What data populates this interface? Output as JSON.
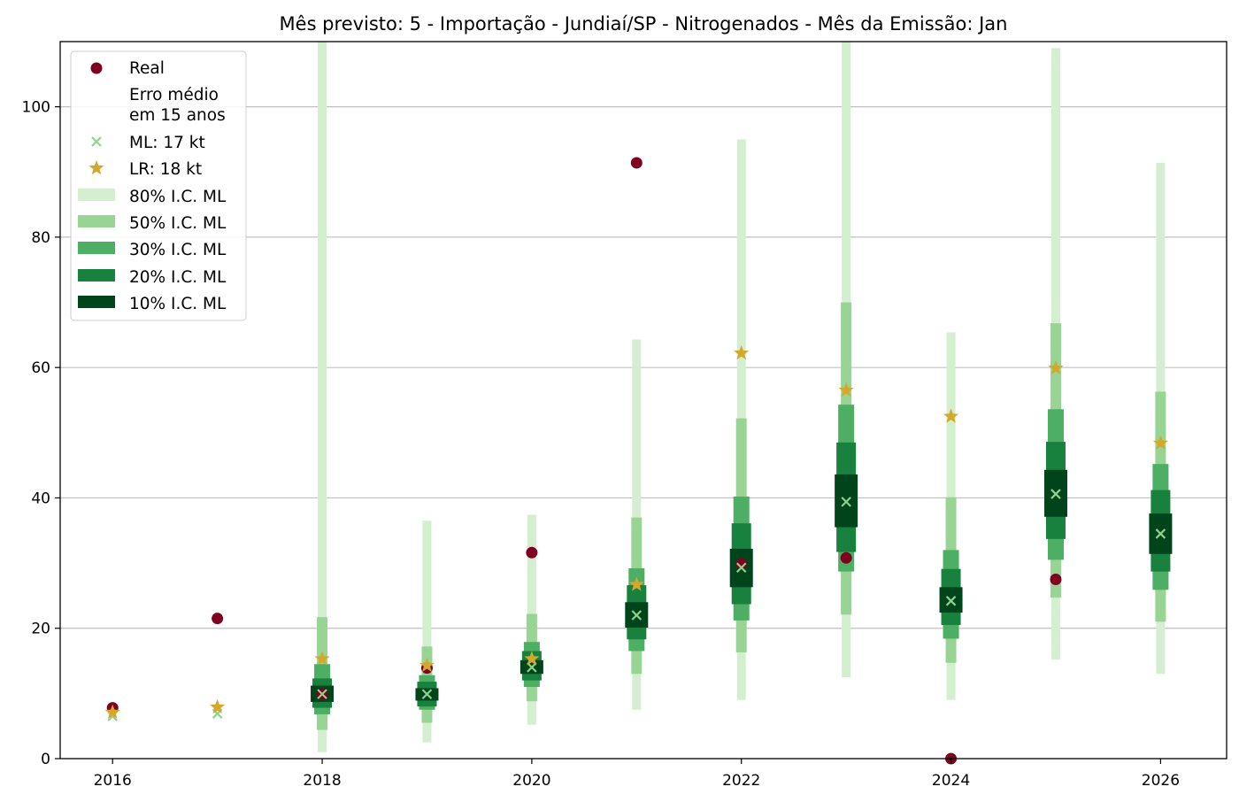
{
  "chart_data": {
    "type": "scatter",
    "title": "Mês previsto: 5 - Importação - Jundiaí/SP - Nitrogenados - Mês da Emissão: Jan",
    "xlabel": "",
    "ylabel": "",
    "xlim": [
      2015.5,
      2026.63
    ],
    "ylim": [
      0,
      110
    ],
    "x_ticks": [
      2016,
      2018,
      2020,
      2022,
      2024,
      2026
    ],
    "y_ticks": [
      0,
      20,
      40,
      60,
      80,
      100
    ],
    "grid": "horizontal",
    "legend_position": "top-left",
    "colors": {
      "real": "#7f0020",
      "ml": "#8fd28b",
      "lr": "#d4a82c",
      "ci80": "#d3efcf",
      "ci50": "#98d594",
      "ci30": "#4caf64",
      "ci20": "#17813d",
      "ci10": "#00441b",
      "grid": "#c0c0c0"
    },
    "legend": {
      "real": "Real",
      "erro_line1": "Erro médio",
      "erro_line2": "em 15 anos",
      "ml": "ML: 17 kt",
      "lr": "LR: 18 kt",
      "ci80": "80% I.C. ML",
      "ci50": "50% I.C. ML",
      "ci30": "30% I.C. ML",
      "ci20": "20% I.C. ML",
      "ci10": "10% I.C. ML"
    },
    "years": [
      2016,
      2017,
      2018,
      2019,
      2020,
      2021,
      2022,
      2023,
      2024,
      2025,
      2026
    ],
    "real": [
      7.8,
      21.5,
      9.9,
      13.9,
      31.6,
      91.4,
      29.9,
      30.8,
      0.0,
      27.5,
      null
    ],
    "ml": [
      6.5,
      6.9,
      9.9,
      9.9,
      14.0,
      22.0,
      29.3,
      39.4,
      24.2,
      40.6,
      34.5
    ],
    "lr": [
      7.1,
      7.9,
      15.3,
      14.3,
      15.3,
      26.7,
      62.2,
      56.5,
      52.5,
      59.9,
      48.4
    ],
    "ci80": [
      null,
      null,
      [
        1.0,
        110.0
      ],
      [
        2.5,
        36.5
      ],
      [
        5.2,
        37.4
      ],
      [
        7.5,
        64.3
      ],
      [
        9.0,
        95.0
      ],
      [
        12.5,
        110.0
      ],
      [
        9.0,
        65.4
      ],
      [
        15.2,
        109.0
      ],
      [
        13.0,
        91.4
      ]
    ],
    "ci50": [
      null,
      null,
      [
        4.4,
        21.7
      ],
      [
        5.5,
        17.2
      ],
      [
        8.8,
        22.2
      ],
      [
        13.0,
        37.0
      ],
      [
        16.3,
        52.2
      ],
      [
        22.1,
        70.0
      ],
      [
        14.7,
        40.1
      ],
      [
        24.7,
        66.8
      ],
      [
        21.0,
        56.3
      ]
    ],
    "ci30": [
      null,
      null,
      [
        6.8,
        14.5
      ],
      [
        7.5,
        12.8
      ],
      [
        11.0,
        17.9
      ],
      [
        16.5,
        29.2
      ],
      [
        21.2,
        40.2
      ],
      [
        28.7,
        54.3
      ],
      [
        18.4,
        32.0
      ],
      [
        30.5,
        53.6
      ],
      [
        25.9,
        45.2
      ]
    ],
    "ci20": [
      null,
      null,
      [
        7.8,
        12.3
      ],
      [
        8.0,
        11.8
      ],
      [
        12.0,
        16.5
      ],
      [
        18.3,
        26.6
      ],
      [
        23.7,
        36.1
      ],
      [
        31.7,
        48.5
      ],
      [
        20.5,
        29.1
      ],
      [
        33.7,
        48.6
      ],
      [
        28.7,
        41.2
      ]
    ],
    "ci10": [
      null,
      null,
      [
        8.7,
        11.2
      ],
      [
        8.9,
        10.8
      ],
      [
        13.0,
        15.1
      ],
      [
        20.1,
        24.0
      ],
      [
        26.3,
        32.2
      ],
      [
        35.5,
        43.6
      ],
      [
        22.4,
        26.3
      ],
      [
        37.1,
        44.3
      ],
      [
        31.4,
        37.6
      ]
    ]
  }
}
